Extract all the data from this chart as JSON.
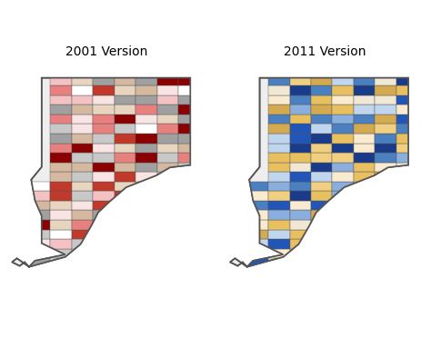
{
  "title_left": "2001 Version",
  "title_right": "2011 Version",
  "title_fontsize": 10,
  "bg_color": "#ffffff",
  "border_color": "#555555",
  "left_colors": [
    "#8b0000",
    "#c0392b",
    "#e88080",
    "#f4c2c2",
    "#f9e4e4",
    "#ffffff",
    "#a0a0a0",
    "#c8c8c8",
    "#d4b8a0",
    "#e8d5c0"
  ],
  "right_colors": [
    "#1a3a8a",
    "#2255b8",
    "#4a7fc0",
    "#8aaedd",
    "#c0d5ee",
    "#f0e8d5",
    "#d4aa50",
    "#e8c060",
    "#f0d080",
    "#faebd0"
  ]
}
